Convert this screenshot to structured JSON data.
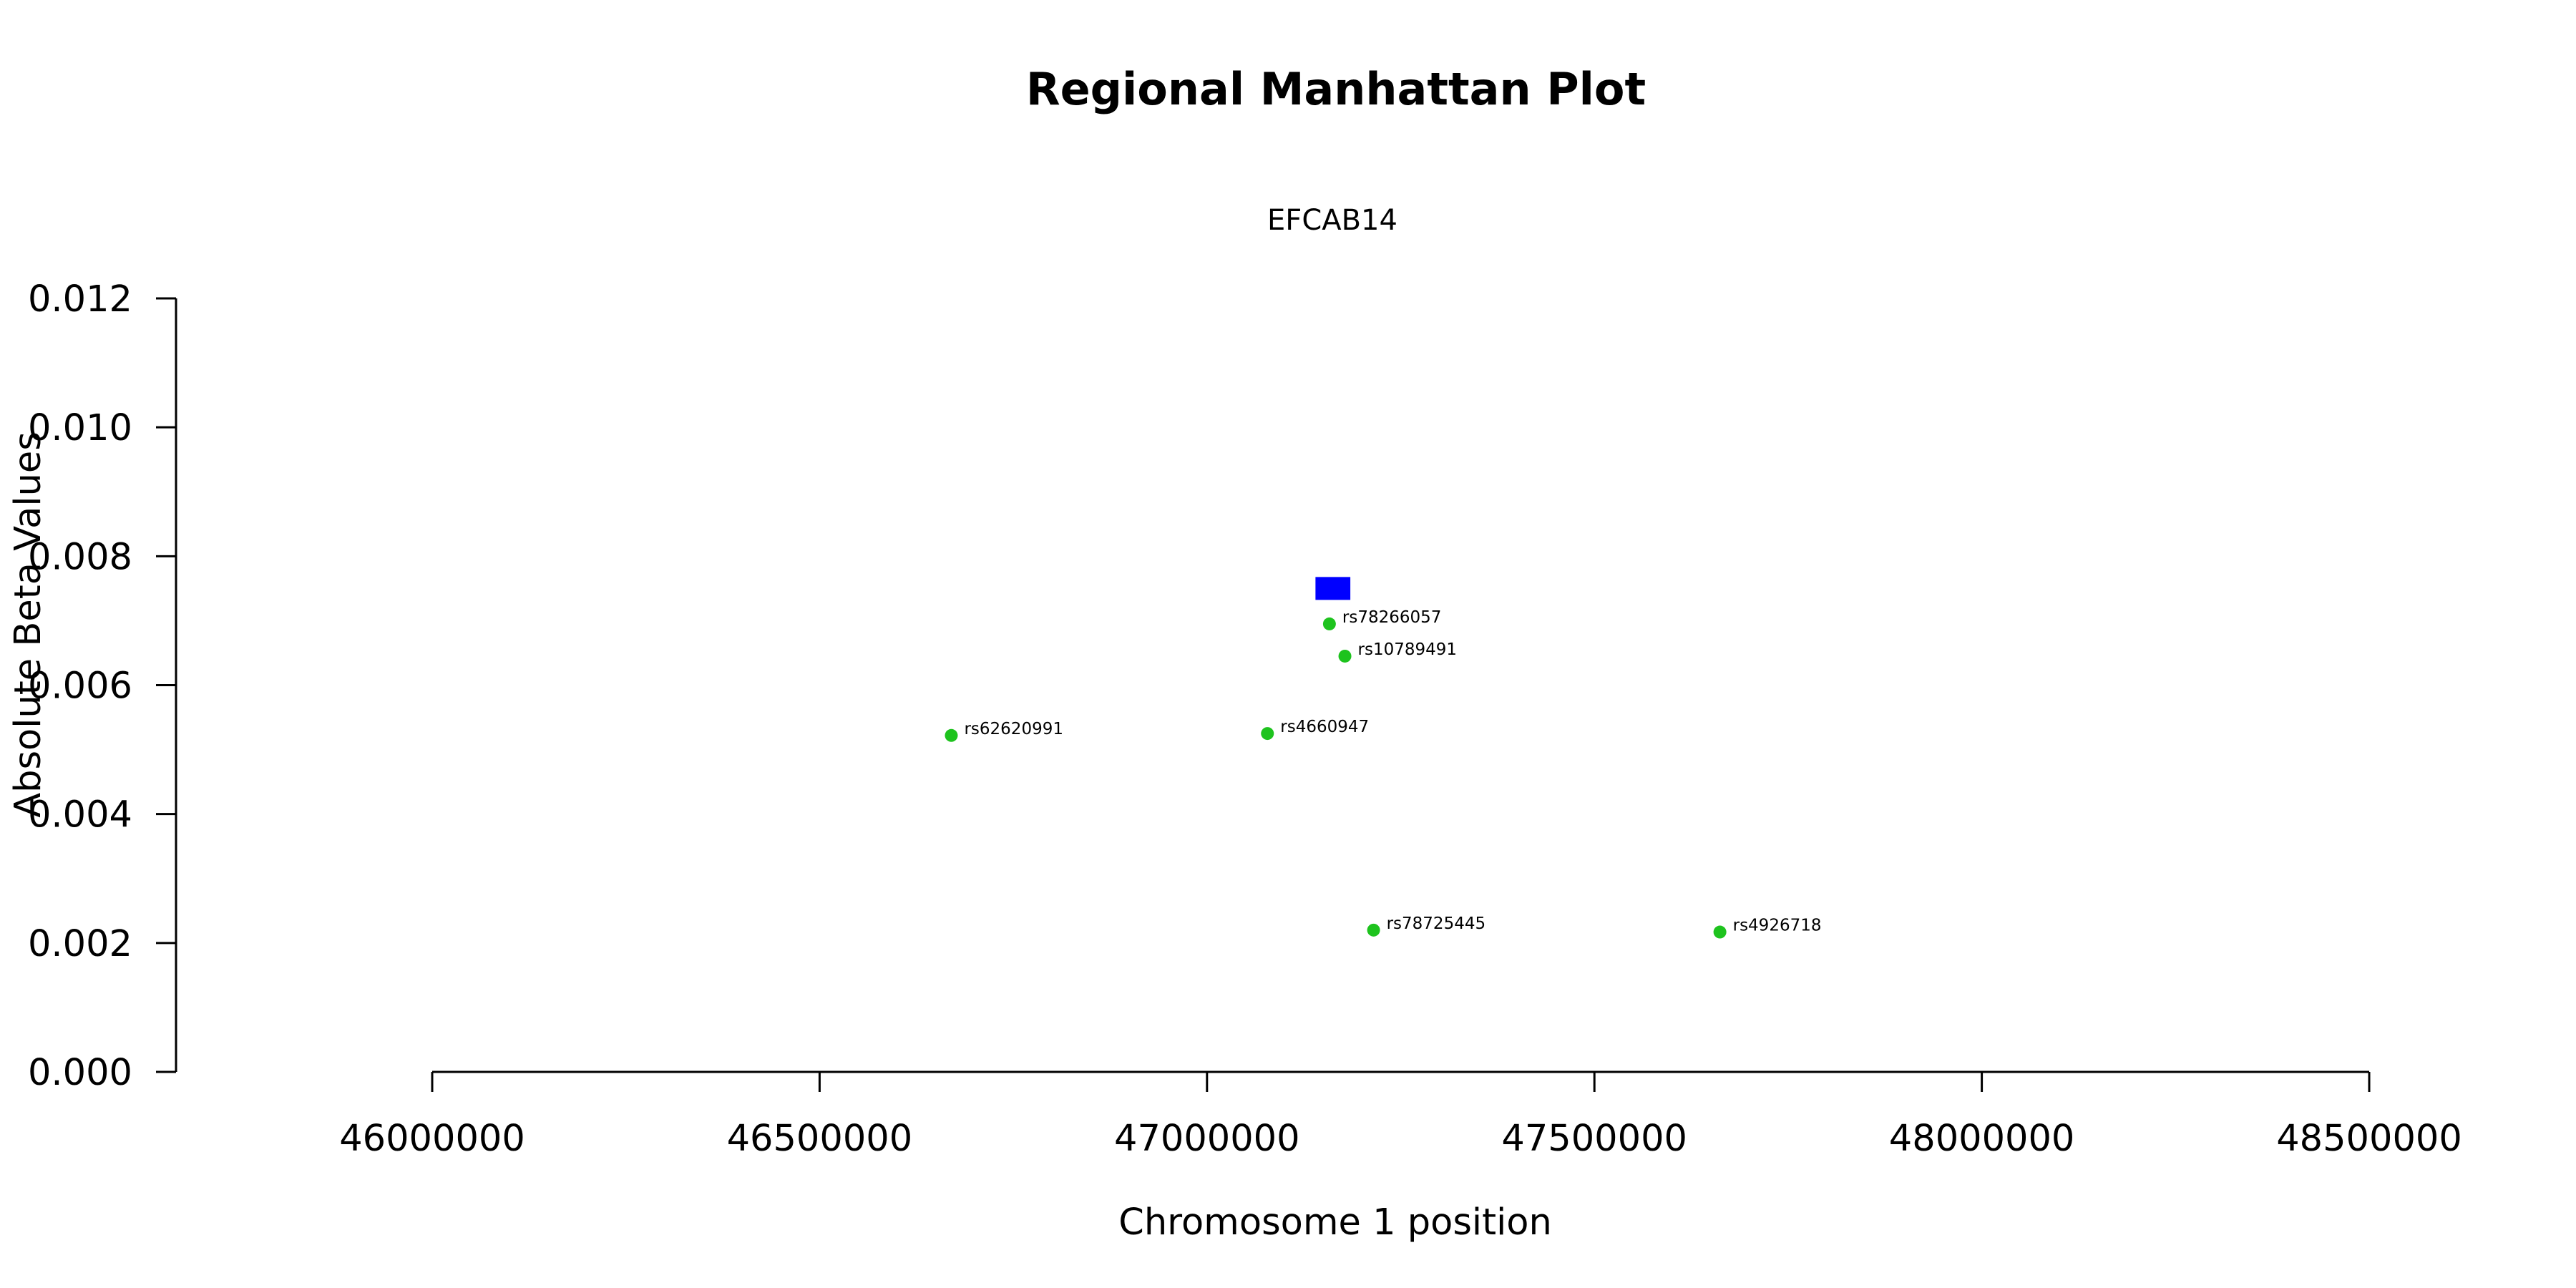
{
  "chart_data": {
    "type": "scatter",
    "title": "Regional Manhattan Plot",
    "subtitle": "EFCAB14",
    "xlabel": "Chromosome 1 position",
    "ylabel": "Absolute Beta Values",
    "xlim": [
      46000000,
      48500000
    ],
    "ylim": [
      0,
      0.012
    ],
    "x_ticks": [
      46000000,
      46500000,
      47000000,
      47500000,
      48000000,
      48500000
    ],
    "x_tick_labels": [
      "46000000",
      "46500000",
      "47000000",
      "47500000",
      "48000000",
      "48500000"
    ],
    "y_ticks": [
      0,
      0.002,
      0.004,
      0.006,
      0.008,
      0.01,
      0.012
    ],
    "y_tick_labels": [
      "0.000",
      "0.002",
      "0.004",
      "0.006",
      "0.008",
      "0.010",
      "0.012"
    ],
    "grid": false,
    "gene": {
      "name": "EFCAB14",
      "start": 47140000,
      "end": 47185000,
      "y": 0.0075,
      "color": "#0000ff"
    },
    "point_color": "#1ec31e",
    "points": [
      {
        "label": "rs62620991",
        "x": 46670000,
        "y": 0.00522
      },
      {
        "label": "rs4660947",
        "x": 47078000,
        "y": 0.00525
      },
      {
        "label": "rs78266057",
        "x": 47158000,
        "y": 0.00695
      },
      {
        "label": "rs10789491",
        "x": 47178000,
        "y": 0.00645
      },
      {
        "label": "rs78725445",
        "x": 47215000,
        "y": 0.0022
      },
      {
        "label": "rs4926718",
        "x": 47662000,
        "y": 0.00217
      }
    ]
  }
}
